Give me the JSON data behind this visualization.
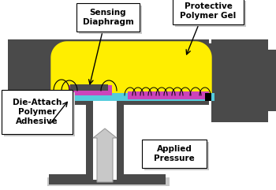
{
  "fig_width": 3.5,
  "fig_height": 2.41,
  "dpi": 100,
  "dark_gray": "#4a4a4a",
  "light_gray": "#c8c8c8",
  "yellow": "#ffee00",
  "purple": "#cc44bb",
  "cyan": "#55ccdd",
  "black": "#000000",
  "white": "#ffffff",
  "label_sensing": "Sensing\nDiaphragm",
  "label_polymer": "Protective\nPolymer Gel",
  "label_die": "Die-Attach\nPolymer\nAdhesive",
  "label_pressure": "Applied\nPressure"
}
